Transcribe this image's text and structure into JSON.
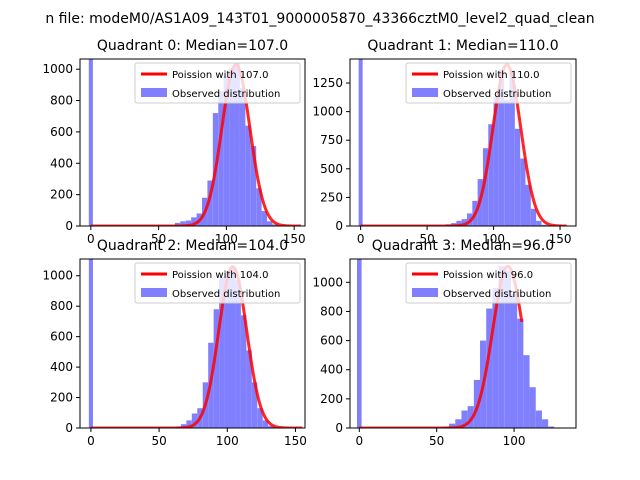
{
  "figure": {
    "suptitle": "n file: modeM0/AS1A09_143T01_9000005870_43366cztM0_level2_quad_clean"
  },
  "chart_data": [
    {
      "type": "bar",
      "title": "Quadrant 0: Median=107.0",
      "xlabel": "",
      "ylabel": "",
      "xlim": [
        -8,
        158
      ],
      "ylim": [
        0,
        1065
      ],
      "xticks": [
        0,
        50,
        100,
        150
      ],
      "yticks": [
        0,
        200,
        400,
        600,
        800,
        1000
      ],
      "median": 107.0,
      "peak": 1030,
      "spike": {
        "x": 0,
        "value": 1065
      },
      "bins": {
        "x": [
          60,
          64,
          68,
          72,
          76,
          80,
          84,
          88,
          92,
          96,
          100,
          104,
          108,
          112,
          116,
          120,
          124,
          128,
          132,
          136
        ],
        "values": [
          5,
          20,
          30,
          35,
          55,
          80,
          180,
          290,
          720,
          860,
          960,
          1010,
          1040,
          880,
          640,
          510,
          240,
          95,
          30,
          10
        ]
      },
      "series": [
        {
          "name": "Poission with 107.0",
          "kind": "poisson",
          "color": "#ff0000"
        },
        {
          "name": "Observed distribution",
          "kind": "hist",
          "color": "#8080ff"
        }
      ],
      "legend": "top-right"
    },
    {
      "type": "bar",
      "title": "Quadrant 1: Median=110.0",
      "xlabel": "",
      "ylabel": "",
      "xlim": [
        -8,
        162
      ],
      "ylim": [
        0,
        1460
      ],
      "xticks": [
        0,
        50,
        100,
        150
      ],
      "yticks": [
        0,
        250,
        500,
        750,
        1000,
        1250
      ],
      "median": 110.0,
      "peak": 1410,
      "spike": {
        "x": 0,
        "value": 1460
      },
      "bins": {
        "x": [
          62,
          66,
          70,
          74,
          78,
          82,
          86,
          90,
          94,
          98,
          102,
          106,
          110,
          114,
          118,
          122,
          126,
          130,
          134,
          138
        ],
        "values": [
          5,
          15,
          25,
          45,
          60,
          110,
          220,
          410,
          680,
          890,
          1130,
          1370,
          1100,
          1360,
          850,
          590,
          360,
          150,
          45,
          10
        ]
      },
      "series": [
        {
          "name": "Poission with 110.0",
          "kind": "poisson",
          "color": "#ff0000"
        },
        {
          "name": "Observed distribution",
          "kind": "hist",
          "color": "#8080ff"
        }
      ],
      "legend": "top-right"
    },
    {
      "type": "bar",
      "title": "Quadrant 2: Median=104.0",
      "xlabel": "",
      "ylabel": "",
      "xlim": [
        -8,
        157
      ],
      "ylim": [
        0,
        1110
      ],
      "xticks": [
        0,
        50,
        100,
        150
      ],
      "yticks": [
        0,
        200,
        400,
        600,
        800,
        1000
      ],
      "median": 104.0,
      "peak": 1060,
      "spike": {
        "x": 0,
        "value": 1110
      },
      "bins": {
        "x": [
          64,
          68,
          72,
          76,
          80,
          84,
          88,
          92,
          96,
          100,
          104,
          108,
          112,
          116,
          120,
          124,
          128,
          132
        ],
        "values": [
          10,
          25,
          50,
          95,
          130,
          300,
          560,
          780,
          990,
          1030,
          1050,
          970,
          740,
          510,
          300,
          130,
          50,
          15
        ]
      },
      "series": [
        {
          "name": "Poission with 104.0",
          "kind": "poisson",
          "color": "#ff0000"
        },
        {
          "name": "Observed distribution",
          "kind": "hist",
          "color": "#8080ff"
        }
      ],
      "legend": "top-right"
    },
    {
      "type": "bar",
      "title": "Quadrant 3: Median=96.0",
      "xlabel": "",
      "ylabel": "",
      "xlim": [
        -6,
        140
      ],
      "ylim": [
        0,
        1160
      ],
      "xticks": [
        0,
        50,
        100
      ],
      "yticks": [
        0,
        200,
        400,
        600,
        800,
        1000
      ],
      "median": 96.0,
      "peak": 1110,
      "spike": {
        "x": 0,
        "value": 1160
      },
      "bins": {
        "x": [
          56,
          60,
          64,
          68,
          72,
          76,
          80,
          84,
          88,
          92,
          96,
          100,
          104,
          108,
          112,
          116,
          120,
          124
        ],
        "values": [
          10,
          30,
          60,
          120,
          150,
          330,
          600,
          820,
          960,
          1110,
          1080,
          920,
          750,
          500,
          280,
          120,
          60,
          10
        ]
      },
      "series": [
        {
          "name": "Poission with 96.0",
          "kind": "poisson",
          "color": "#ff0000"
        },
        {
          "name": "Observed distribution",
          "kind": "hist",
          "color": "#8080ff"
        }
      ],
      "legend": "top-right"
    }
  ]
}
